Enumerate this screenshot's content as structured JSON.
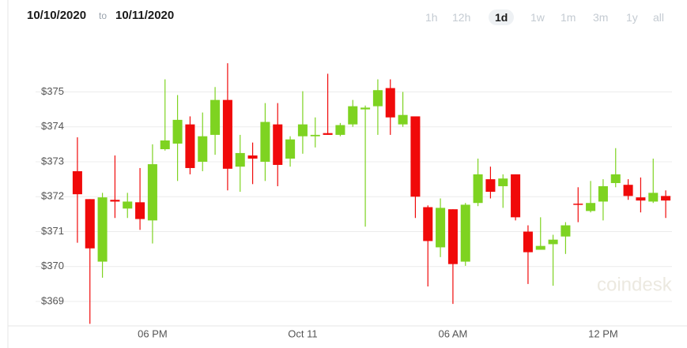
{
  "header": {
    "from": "10/10/2020",
    "to_word": "to",
    "to": "10/11/2020",
    "ranges": [
      "1h",
      "12h",
      "1d",
      "1w",
      "1m",
      "3m",
      "1y",
      "all"
    ],
    "active_range": "1d"
  },
  "watermark": "coindesk",
  "chart_data": {
    "type": "candlestick",
    "categories": [
      null,
      null,
      null,
      null,
      null,
      null,
      "06 PM",
      null,
      null,
      null,
      null,
      null,
      null,
      null,
      null,
      null,
      null,
      null,
      "Oct 11",
      null,
      null,
      null,
      null,
      null,
      null,
      null,
      null,
      null,
      null,
      null,
      "06 AM",
      null,
      null,
      null,
      null,
      null,
      null,
      null,
      null,
      null,
      null,
      null,
      "12 PM",
      null,
      null,
      null,
      null,
      null
    ],
    "open": [
      372.73,
      371.93,
      370.14,
      371.91,
      371.66,
      371.84,
      371.32,
      373.36,
      373.52,
      374.07,
      373.0,
      373.77,
      374.77,
      372.86,
      373.18,
      373.0,
      374.07,
      373.09,
      373.73,
      373.73,
      373.82,
      373.77,
      374.07,
      374.5,
      374.59,
      375.11,
      374.07,
      374.3,
      371.7,
      370.55,
      371.64,
      370.14,
      371.82,
      372.5,
      372.3,
      372.64,
      371.0,
      370.48,
      370.64,
      370.86,
      371.8,
      371.59,
      371.86,
      372.39,
      372.34,
      371.98,
      371.86,
      372.02
    ],
    "close": [
      372.07,
      370.52,
      371.98,
      371.86,
      371.86,
      371.36,
      372.93,
      373.61,
      374.2,
      372.82,
      373.73,
      374.77,
      372.8,
      373.25,
      373.09,
      374.14,
      372.91,
      373.64,
      374.07,
      373.77,
      373.77,
      374.05,
      374.59,
      374.55,
      375.05,
      374.27,
      374.34,
      372.0,
      370.73,
      371.68,
      370.07,
      371.77,
      372.64,
      372.14,
      372.52,
      371.41,
      370.41,
      370.59,
      370.77,
      371.18,
      371.77,
      371.82,
      372.3,
      372.64,
      372.02,
      371.89,
      372.11,
      371.89
    ],
    "high": [
      373.7,
      371.93,
      372.11,
      373.18,
      372.11,
      372.82,
      373.5,
      375.36,
      374.91,
      374.3,
      374.41,
      375.14,
      375.82,
      373.77,
      373.55,
      374.68,
      374.68,
      373.73,
      375.02,
      374.27,
      375.52,
      374.11,
      374.77,
      374.61,
      375.36,
      375.36,
      375.0,
      374.3,
      371.75,
      371.95,
      371.64,
      371.82,
      373.09,
      372.86,
      372.64,
      372.64,
      371.18,
      371.41,
      370.91,
      371.27,
      372.27,
      372.45,
      372.5,
      373.39,
      372.5,
      372.55,
      373.09,
      372.18
    ],
    "low": [
      370.68,
      368.36,
      369.68,
      371.39,
      371.39,
      371.05,
      370.66,
      373.32,
      372.45,
      372.64,
      372.73,
      373.2,
      372.18,
      372.14,
      372.36,
      372.45,
      372.3,
      372.86,
      373.23,
      373.41,
      373.77,
      373.73,
      374.0,
      371.14,
      373.77,
      373.77,
      374.0,
      371.39,
      369.43,
      370.27,
      368.93,
      370.02,
      371.73,
      371.95,
      371.68,
      371.32,
      369.5,
      370.48,
      369.45,
      370.36,
      371.27,
      371.55,
      371.32,
      372.27,
      371.91,
      371.55,
      371.82,
      371.39
    ],
    "up_color": "#7ed321",
    "down_color": "#f00a0a",
    "ylim": [
      368.3,
      376.05
    ],
    "yticks": [
      {
        "value": 369,
        "label": "$369"
      },
      {
        "value": 370,
        "label": "$370"
      },
      {
        "value": 371,
        "label": "$371"
      },
      {
        "value": 372,
        "label": "$372"
      },
      {
        "value": 373,
        "label": "$373"
      },
      {
        "value": 374,
        "label": "$374"
      },
      {
        "value": 375,
        "label": "$375"
      }
    ],
    "grid": true
  }
}
